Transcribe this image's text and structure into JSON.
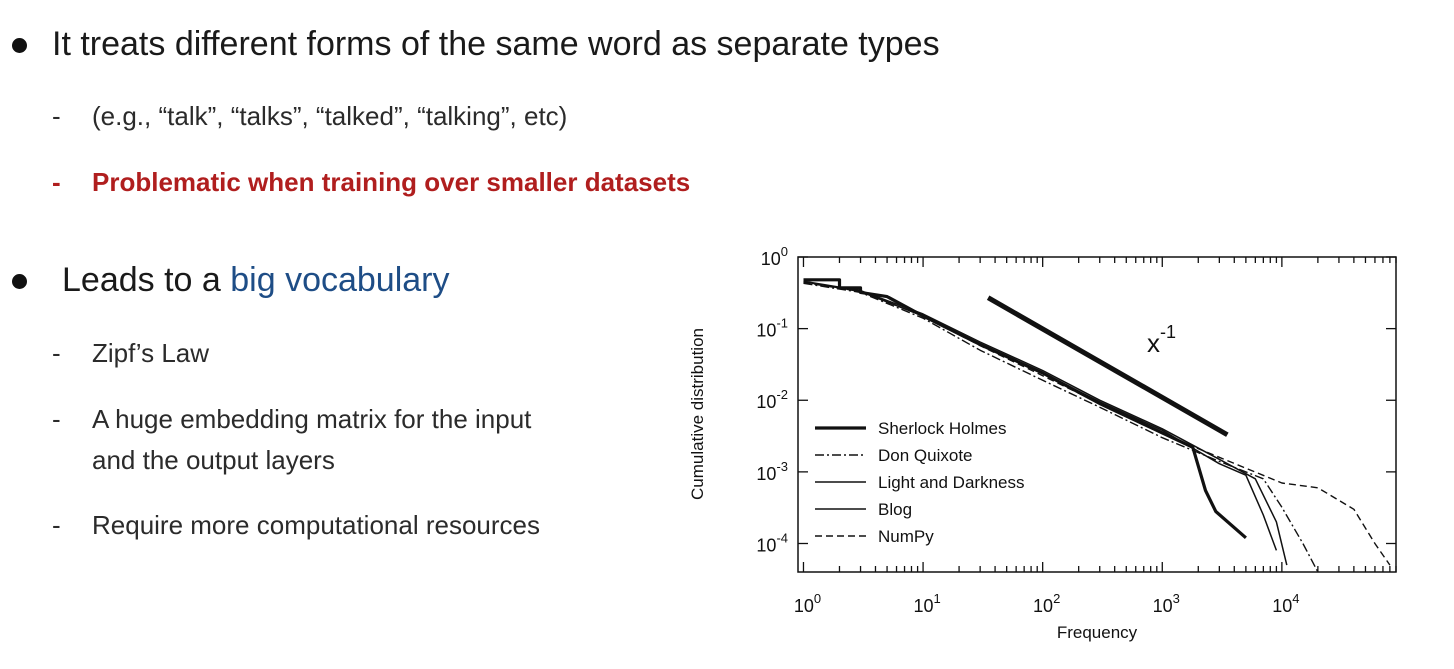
{
  "bullets": [
    {
      "text": "It treats different forms of the same word as separate types",
      "subs": [
        {
          "text": "(e.g., “talk”, “talks”, “talked”, “talking”, etc)",
          "style": "normal"
        },
        {
          "text": "Problematic when training over smaller datasets",
          "style": "emphasis-red"
        }
      ]
    },
    {
      "text_prefix": "Leads to a ",
      "text_highlight": "big vocabulary",
      "subs": [
        {
          "text": "Zipf’s Law"
        },
        {
          "text_line1": "A huge embedding matrix for the input",
          "text_line2": "and the output layers"
        },
        {
          "text": "Require more computational resources"
        }
      ]
    }
  ],
  "dash": "-",
  "colors": {
    "emphasis_red": "#b01e1e",
    "highlight_blue": "#1e4d86"
  },
  "chart_data": {
    "type": "line",
    "xscale": "log",
    "yscale": "log",
    "xlim": [
      0.9,
      90000
    ],
    "ylim": [
      4e-05,
      1
    ],
    "xlabel": "Frequency",
    "ylabel": "Cumulative distribution",
    "x_ticks": [
      {
        "value": 1,
        "base": "10",
        "exp": "0"
      },
      {
        "value": 10,
        "base": "10",
        "exp": "1"
      },
      {
        "value": 100,
        "base": "10",
        "exp": "2"
      },
      {
        "value": 1000,
        "base": "10",
        "exp": "3"
      },
      {
        "value": 10000,
        "base": "10",
        "exp": "4"
      }
    ],
    "y_ticks": [
      {
        "value": 1,
        "base": "10",
        "exp": "0"
      },
      {
        "value": 0.1,
        "base": "10",
        "exp": "-1"
      },
      {
        "value": 0.01,
        "base": "10",
        "exp": "-2"
      },
      {
        "value": 0.001,
        "base": "10",
        "exp": "-3"
      },
      {
        "value": 0.0001,
        "base": "10",
        "exp": "-4"
      }
    ],
    "legend_position": "bottom-left",
    "series": [
      {
        "name": "Sherlock Holmes",
        "style": "thick-solid",
        "points": [
          [
            1,
            0.48
          ],
          [
            2,
            0.48
          ],
          [
            2,
            0.37
          ],
          [
            3,
            0.37
          ],
          [
            3,
            0.32
          ],
          [
            5,
            0.28
          ],
          [
            10,
            0.15
          ],
          [
            30,
            0.06
          ],
          [
            100,
            0.024
          ],
          [
            300,
            0.009
          ],
          [
            1000,
            0.0035
          ],
          [
            1800,
            0.0022
          ],
          [
            2300,
            0.00055
          ],
          [
            2800,
            0.00028
          ],
          [
            5000,
            0.00012
          ]
        ]
      },
      {
        "name": "Don Quixote",
        "style": "dash-dot",
        "points": [
          [
            1,
            0.43
          ],
          [
            3,
            0.32
          ],
          [
            10,
            0.14
          ],
          [
            30,
            0.05
          ],
          [
            100,
            0.019
          ],
          [
            300,
            0.008
          ],
          [
            1000,
            0.003
          ],
          [
            3000,
            0.0014
          ],
          [
            7000,
            0.0008
          ],
          [
            10000,
            0.00032
          ],
          [
            15000,
            0.0001
          ],
          [
            20000,
            4e-05
          ]
        ]
      },
      {
        "name": "Light and Darkness",
        "style": "solid",
        "points": [
          [
            1,
            0.46
          ],
          [
            3,
            0.34
          ],
          [
            10,
            0.16
          ],
          [
            30,
            0.065
          ],
          [
            100,
            0.026
          ],
          [
            300,
            0.01
          ],
          [
            1000,
            0.004
          ],
          [
            3000,
            0.0015
          ],
          [
            6000,
            0.0008
          ],
          [
            9000,
            0.0002
          ],
          [
            11000,
            5e-05
          ]
        ]
      },
      {
        "name": "Blog",
        "style": "solid",
        "points": [
          [
            1,
            0.45
          ],
          [
            3,
            0.33
          ],
          [
            10,
            0.15
          ],
          [
            30,
            0.062
          ],
          [
            100,
            0.024
          ],
          [
            300,
            0.0095
          ],
          [
            1000,
            0.0038
          ],
          [
            3000,
            0.0013
          ],
          [
            5000,
            0.0009
          ],
          [
            7000,
            0.00025
          ],
          [
            9000,
            8e-05
          ]
        ]
      },
      {
        "name": "NumPy",
        "style": "dashed",
        "points": [
          [
            1,
            0.44
          ],
          [
            3,
            0.33
          ],
          [
            10,
            0.15
          ],
          [
            30,
            0.058
          ],
          [
            100,
            0.022
          ],
          [
            300,
            0.009
          ],
          [
            1000,
            0.0034
          ],
          [
            3000,
            0.0016
          ],
          [
            10000,
            0.0007
          ],
          [
            20000,
            0.0006
          ],
          [
            40000,
            0.0003
          ],
          [
            60000,
            0.0001
          ],
          [
            80000,
            5e-05
          ]
        ]
      }
    ],
    "reference_line": {
      "label_base": "x",
      "label_exp": "-1",
      "points": [
        [
          35,
          0.27
        ],
        [
          3500,
          0.0033
        ]
      ]
    }
  }
}
